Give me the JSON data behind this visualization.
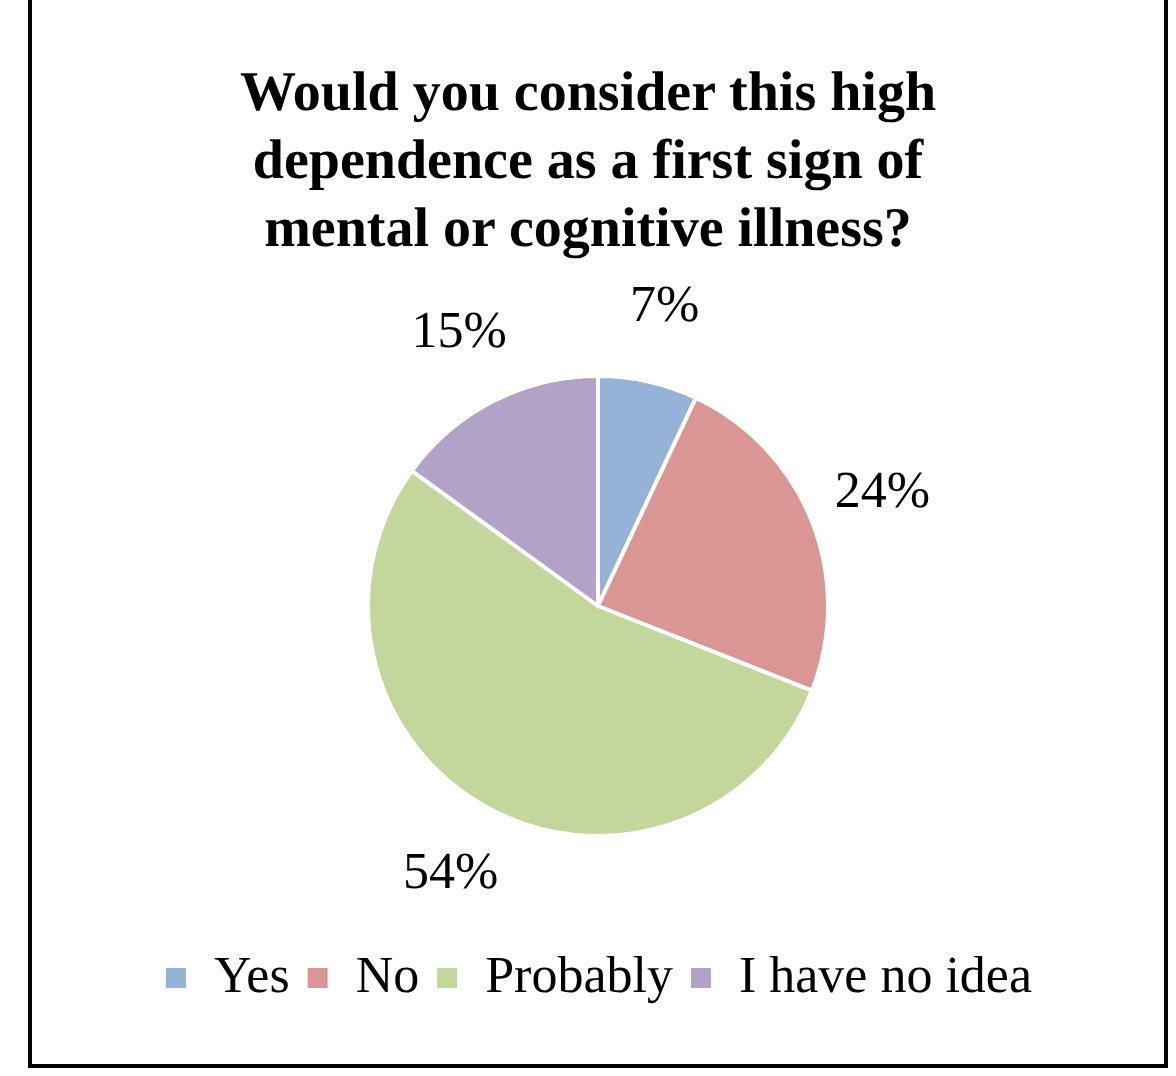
{
  "chart_data": {
    "type": "pie",
    "title": "Would you consider this high dependence as a first sign of mental or cognitive illness?",
    "categories": [
      "Yes",
      "No",
      "Probably",
      "I have no idea"
    ],
    "values": [
      7,
      24,
      54,
      15
    ],
    "value_labels": [
      "7%",
      "24%",
      "54%",
      "15%"
    ],
    "colors": [
      "#95b3d7",
      "#d99694",
      "#c3d69b",
      "#b3a2c7"
    ],
    "legend": "bottom"
  }
}
